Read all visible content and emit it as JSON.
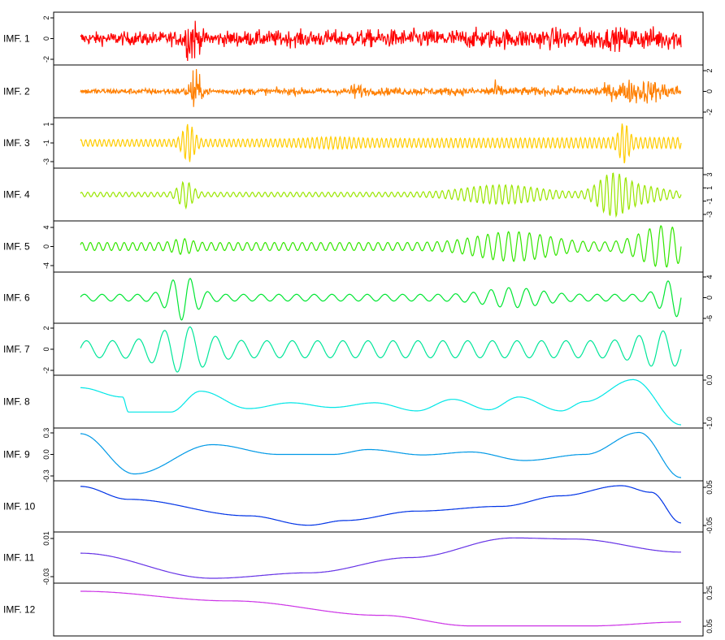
{
  "chart_data": {
    "type": "line",
    "panels": [
      {
        "label": "IMF. 1",
        "color": "#ff0000",
        "axis_side": "left",
        "ticks": [
          "2",
          "0",
          "-2"
        ]
      },
      {
        "label": "IMF. 2",
        "color": "#ff7f00",
        "axis_side": "right",
        "ticks": [
          "2",
          "0",
          "-2"
        ]
      },
      {
        "label": "IMF. 3",
        "color": "#ffcc00",
        "axis_side": "left",
        "ticks": [
          "1",
          "-1",
          "-3"
        ]
      },
      {
        "label": "IMF. 4",
        "color": "#99e600",
        "axis_side": "right",
        "ticks": [
          "3",
          "1",
          "-1",
          "-3"
        ]
      },
      {
        "label": "IMF. 5",
        "color": "#33e600",
        "axis_side": "left",
        "ticks": [
          "4",
          "0",
          "-4"
        ]
      },
      {
        "label": "IMF. 6",
        "color": "#00e633",
        "axis_side": "right",
        "ticks": [
          "4",
          "0",
          "-6"
        ]
      },
      {
        "label": "IMF. 7",
        "color": "#00e699",
        "axis_side": "left",
        "ticks": [
          "2",
          "0",
          "-2"
        ]
      },
      {
        "label": "IMF. 8",
        "color": "#00e6e6",
        "axis_side": "right",
        "ticks": [
          "0.0",
          "-1.0"
        ]
      },
      {
        "label": "IMF. 9",
        "color": "#0099e6",
        "axis_side": "left",
        "ticks": [
          "0.3",
          "0.0",
          "-0.3"
        ]
      },
      {
        "label": "IMF. 10",
        "color": "#0033e6",
        "axis_side": "right",
        "ticks": [
          "0.05",
          "-0.05"
        ]
      },
      {
        "label": "IMF. 11",
        "color": "#6633e6",
        "axis_side": "left",
        "ticks": [
          "0.01",
          "-0.03"
        ]
      },
      {
        "label": "IMF. 12",
        "color": "#cc33e6",
        "axis_side": "right",
        "ticks": [
          "0.25",
          "0.05"
        ]
      }
    ]
  }
}
